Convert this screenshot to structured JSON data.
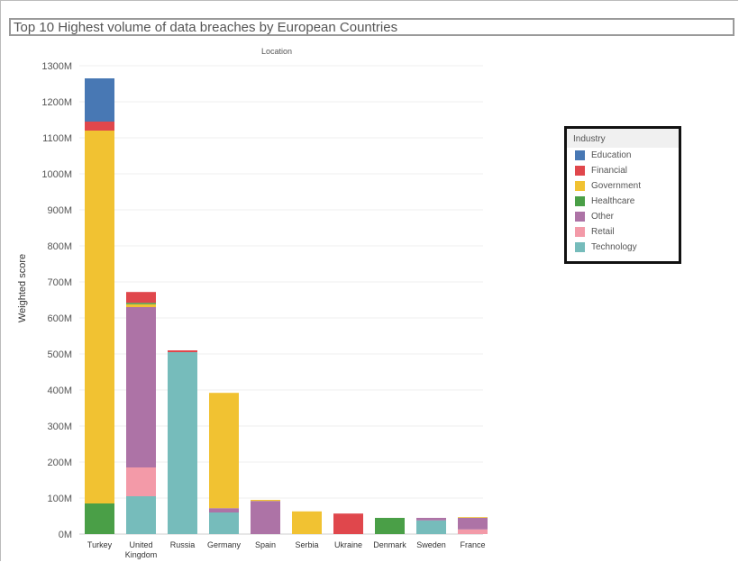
{
  "title": "Top 10 Highest volume of data breaches by European Countries",
  "column_header": "Location",
  "colors": {
    "Education": "#4878b4",
    "Financial": "#e0474c",
    "Government": "#f1c232",
    "Healthcare": "#4a9f47",
    "Other": "#ad73a6",
    "Retail": "#f39aa8",
    "Technology": "#76bcbb"
  },
  "chart_data": {
    "type": "bar",
    "stacked": true,
    "title": "Top 10 Highest volume of data breaches by European Countries",
    "xlabel": "",
    "ylabel": "Weighted score",
    "ylim": [
      0,
      1300
    ],
    "unit": "M",
    "yticks": [
      "0M",
      "100M",
      "200M",
      "300M",
      "400M",
      "500M",
      "600M",
      "700M",
      "800M",
      "900M",
      "1000M",
      "1100M",
      "1200M",
      "1300M"
    ],
    "grid": true,
    "legend_title": "Industry",
    "legend_position": "right",
    "categories": [
      "Turkey",
      "United Kingdom",
      "Russia",
      "Germany",
      "Spain",
      "Serbia",
      "Ukraine",
      "Denmark",
      "Sweden",
      "France"
    ],
    "category_labels": [
      [
        "Turkey"
      ],
      [
        "United",
        "Kingdom"
      ],
      [
        "Russia"
      ],
      [
        "Germany"
      ],
      [
        "Spain"
      ],
      [
        "Serbia"
      ],
      [
        "Ukraine"
      ],
      [
        "Denmark"
      ],
      [
        "Sweden"
      ],
      [
        "France"
      ]
    ],
    "series": [
      {
        "name": "Healthcare",
        "values": [
          85,
          0,
          0,
          0,
          0,
          0,
          0,
          45,
          0,
          0
        ]
      },
      {
        "name": "Technology",
        "values": [
          0,
          105,
          505,
          60,
          0,
          0,
          0,
          0,
          38,
          0
        ]
      },
      {
        "name": "Retail",
        "values": [
          0,
          80,
          0,
          0,
          0,
          0,
          0,
          0,
          0,
          13
        ]
      },
      {
        "name": "Other",
        "values": [
          0,
          445,
          0,
          12,
          92,
          0,
          0,
          0,
          7,
          32
        ]
      },
      {
        "name": "Government",
        "values": [
          1035,
          8,
          0,
          320,
          3,
          63,
          0,
          0,
          0,
          2
        ]
      },
      {
        "name": "Healthcare",
        "values": [
          0,
          4,
          0,
          0,
          0,
          0,
          0,
          0,
          0,
          0
        ]
      },
      {
        "name": "Financial",
        "values": [
          25,
          30,
          5,
          0,
          0,
          0,
          57,
          0,
          0,
          0
        ]
      },
      {
        "name": "Education",
        "values": [
          120,
          0,
          0,
          0,
          0,
          0,
          0,
          0,
          0,
          0
        ]
      }
    ]
  },
  "legend": {
    "title": "Industry",
    "items": [
      "Education",
      "Financial",
      "Government",
      "Healthcare",
      "Other",
      "Retail",
      "Technology"
    ]
  }
}
